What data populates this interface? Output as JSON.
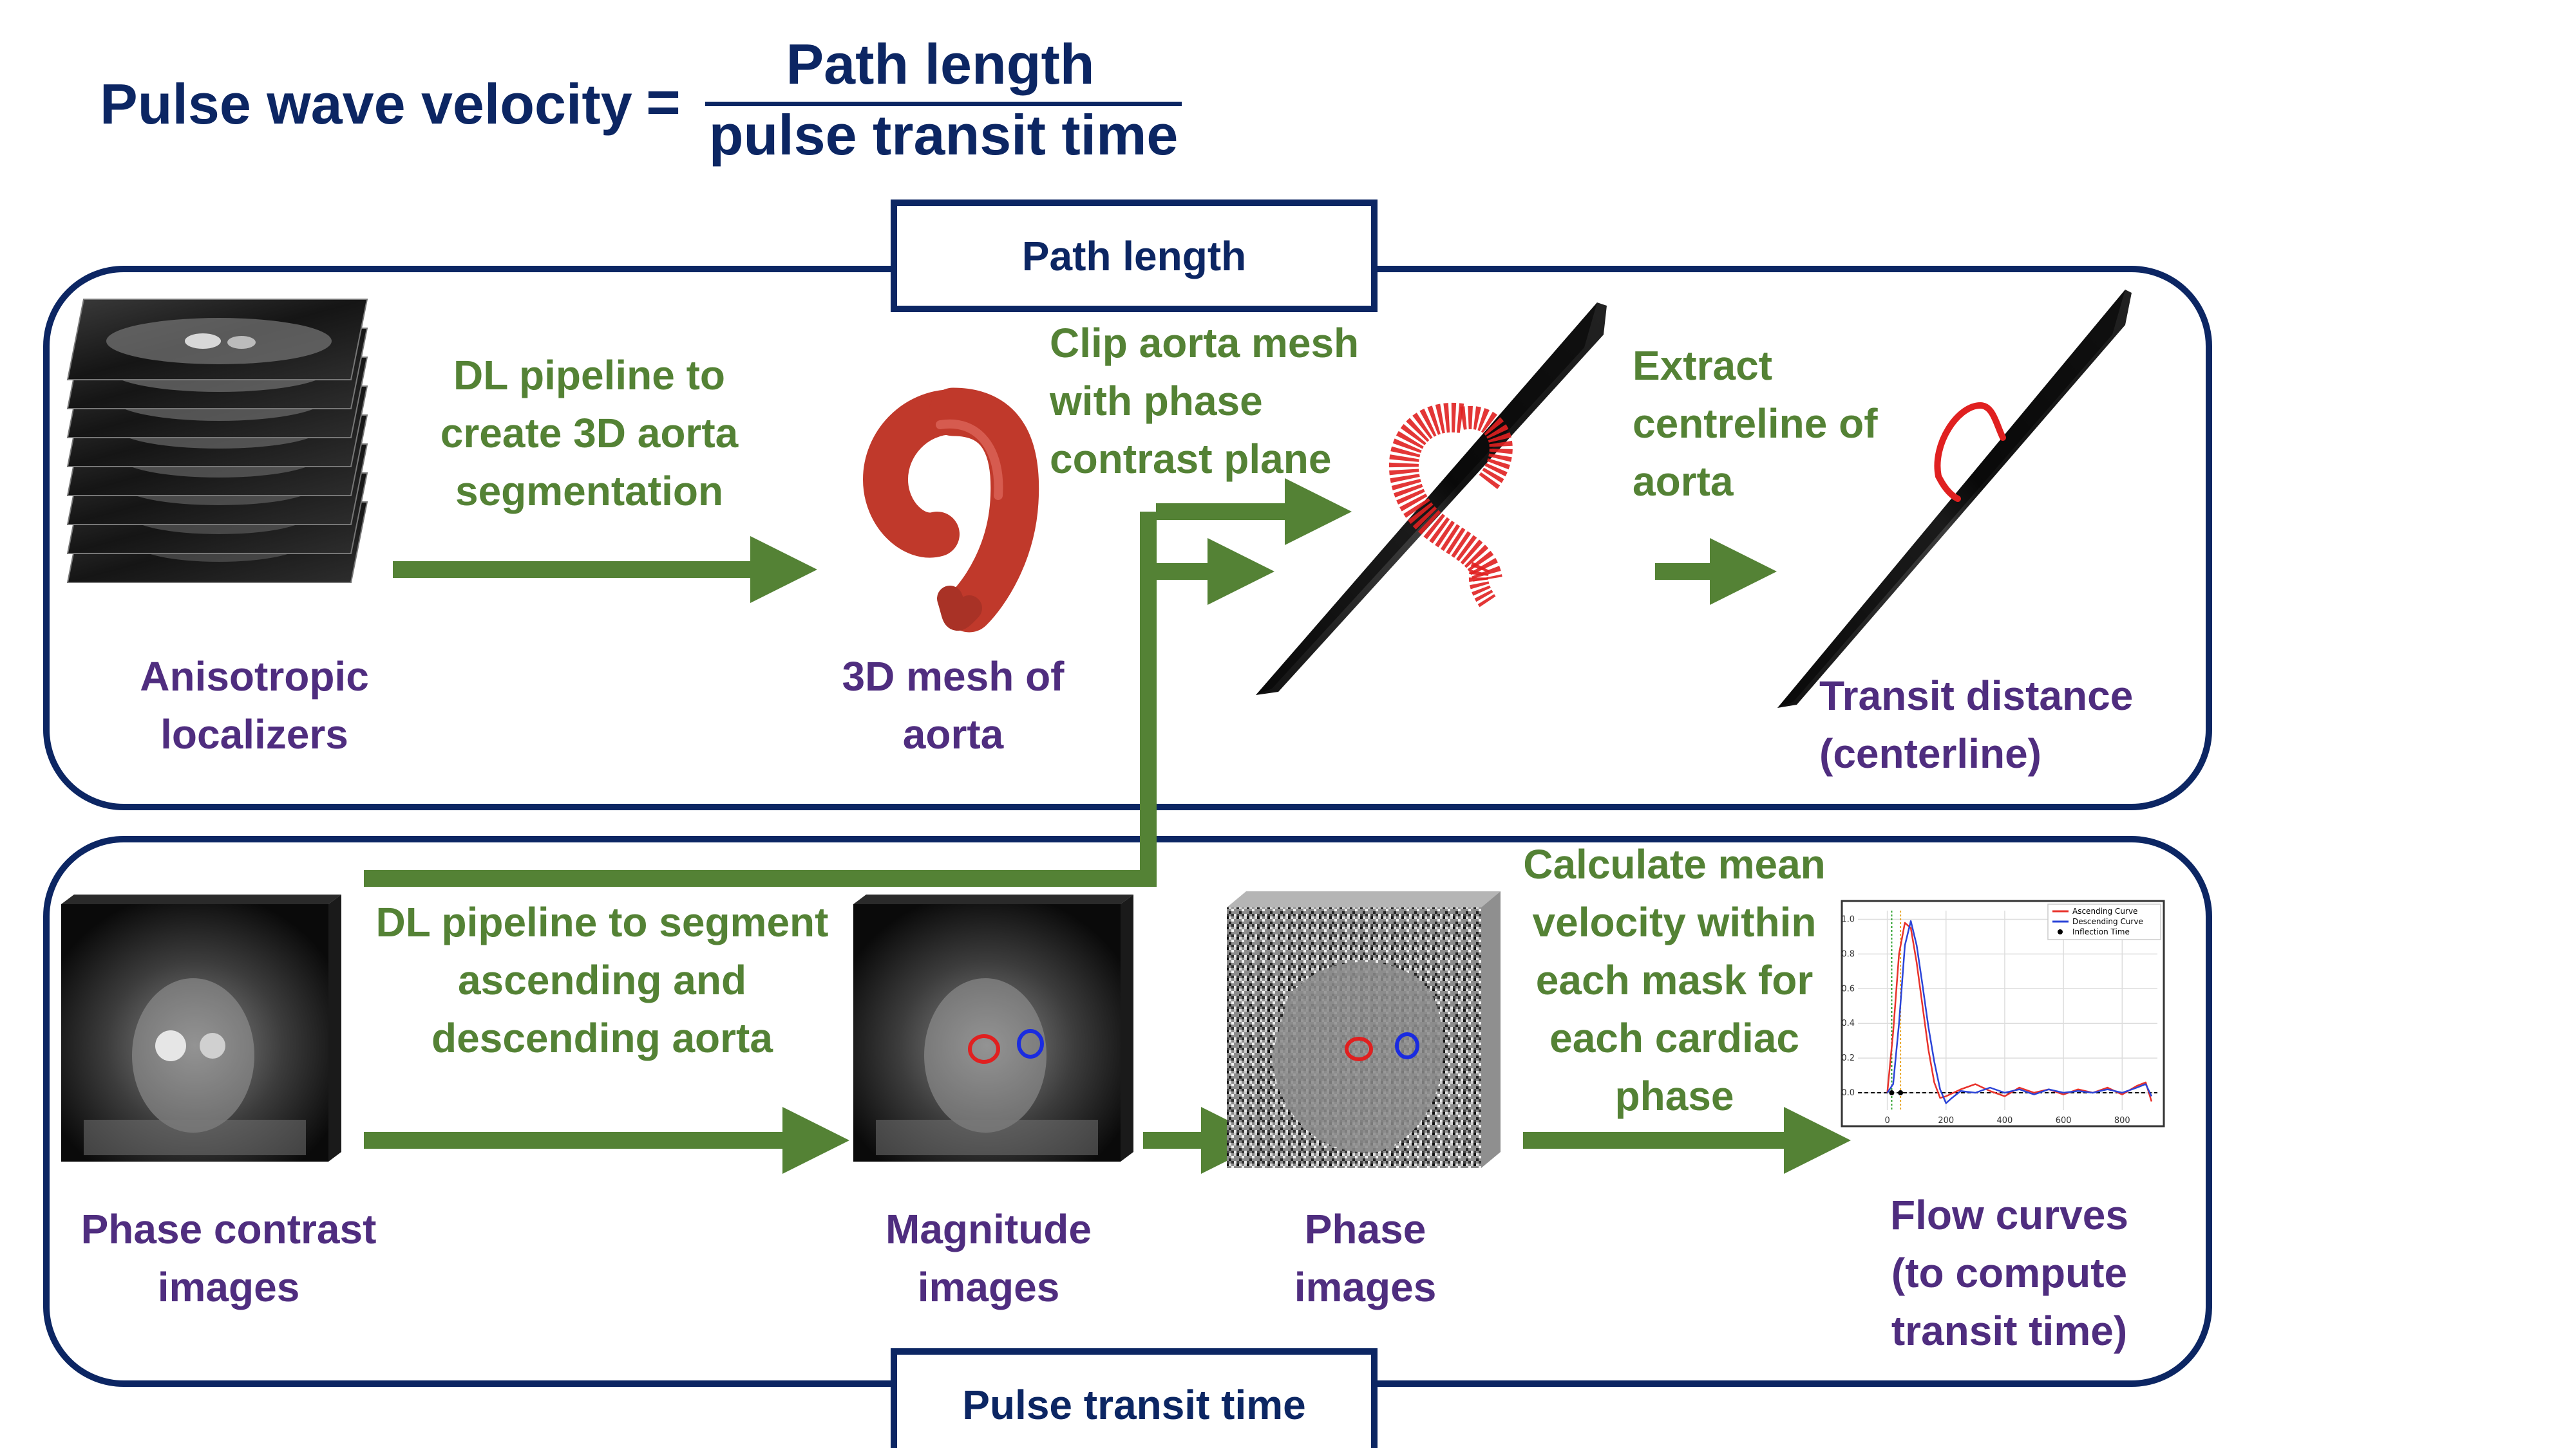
{
  "formula": {
    "lhs": "Pulse wave velocity",
    "equals": "=",
    "numerator": "Path length",
    "denominator": "pulse transit time"
  },
  "panels": {
    "path_length": {
      "title": "Path length"
    },
    "pulse_transit_time": {
      "title": "Pulse transit time"
    }
  },
  "steps": {
    "dl_3d": [
      "DL pipeline to",
      "create 3D aorta",
      "segmentation"
    ],
    "clip": [
      "Clip aorta mesh",
      "with phase",
      "contrast plane"
    ],
    "extract": [
      "Extract",
      "centreline of",
      "aorta"
    ],
    "dl_seg": [
      "DL pipeline to segment",
      "ascending and",
      "descending aorta"
    ],
    "calc": [
      "Calculate mean",
      "velocity within",
      "each mask for",
      "each cardiac",
      "phase"
    ]
  },
  "captions": {
    "localizers": [
      "Anisotropic",
      "localizers"
    ],
    "mesh": [
      "3D mesh of",
      "aorta"
    ],
    "transit_distance": [
      "Transit distance",
      "(centerline)"
    ],
    "phase_contrast": [
      "Phase contrast",
      "images"
    ],
    "magnitude": [
      "Magnitude",
      "images"
    ],
    "phase": [
      "Phase",
      "images"
    ],
    "flow_curves": [
      "Flow curves",
      "(to compute",
      "transit time)"
    ]
  },
  "colors": {
    "navy": "#0c2663",
    "green": "#548235",
    "purple": "#4f2d7f",
    "aorta_red": "#c0392b"
  },
  "chart_data": {
    "type": "line",
    "x_ticks": [
      "0",
      "200",
      "400",
      "600",
      "800"
    ],
    "y_ticks": [
      "0.0",
      "0.2",
      "0.4",
      "0.6",
      "0.8",
      "1.0"
    ],
    "xlim": [
      -100,
      920
    ],
    "ylim": [
      -0.1,
      1.05
    ],
    "grid": true,
    "legend_position": "top-right",
    "legend": [
      "Ascending Curve",
      "Descending Curve",
      "Inflection Time"
    ],
    "series": [
      {
        "name": "Ascending Curve",
        "color": "#e8322b",
        "x": [
          0,
          20,
          40,
          60,
          80,
          100,
          120,
          140,
          160,
          180,
          200,
          250,
          300,
          350,
          400,
          450,
          500,
          550,
          600,
          650,
          700,
          750,
          800,
          850,
          880,
          900
        ],
        "y": [
          0.0,
          0.35,
          0.8,
          0.98,
          0.95,
          0.75,
          0.5,
          0.25,
          0.06,
          -0.03,
          -0.02,
          0.02,
          0.05,
          0.01,
          -0.02,
          0.03,
          0.0,
          0.02,
          -0.01,
          0.02,
          0.0,
          0.03,
          -0.01,
          0.04,
          0.06,
          -0.05
        ]
      },
      {
        "name": "Descending Curve",
        "color": "#2b44d8",
        "x": [
          0,
          20,
          40,
          60,
          80,
          100,
          120,
          140,
          160,
          180,
          200,
          220,
          250,
          300,
          350,
          400,
          450,
          500,
          550,
          600,
          650,
          700,
          750,
          800,
          850,
          880,
          900
        ],
        "y": [
          0.0,
          0.05,
          0.4,
          0.85,
          0.99,
          0.85,
          0.62,
          0.38,
          0.18,
          0.02,
          -0.06,
          -0.03,
          0.01,
          0.0,
          0.03,
          0.0,
          0.02,
          -0.01,
          0.02,
          0.0,
          0.01,
          0.0,
          0.02,
          0.0,
          0.03,
          0.05,
          -0.02
        ]
      }
    ],
    "inflection_times": [
      15,
      45
    ],
    "baseline": 0.0
  }
}
